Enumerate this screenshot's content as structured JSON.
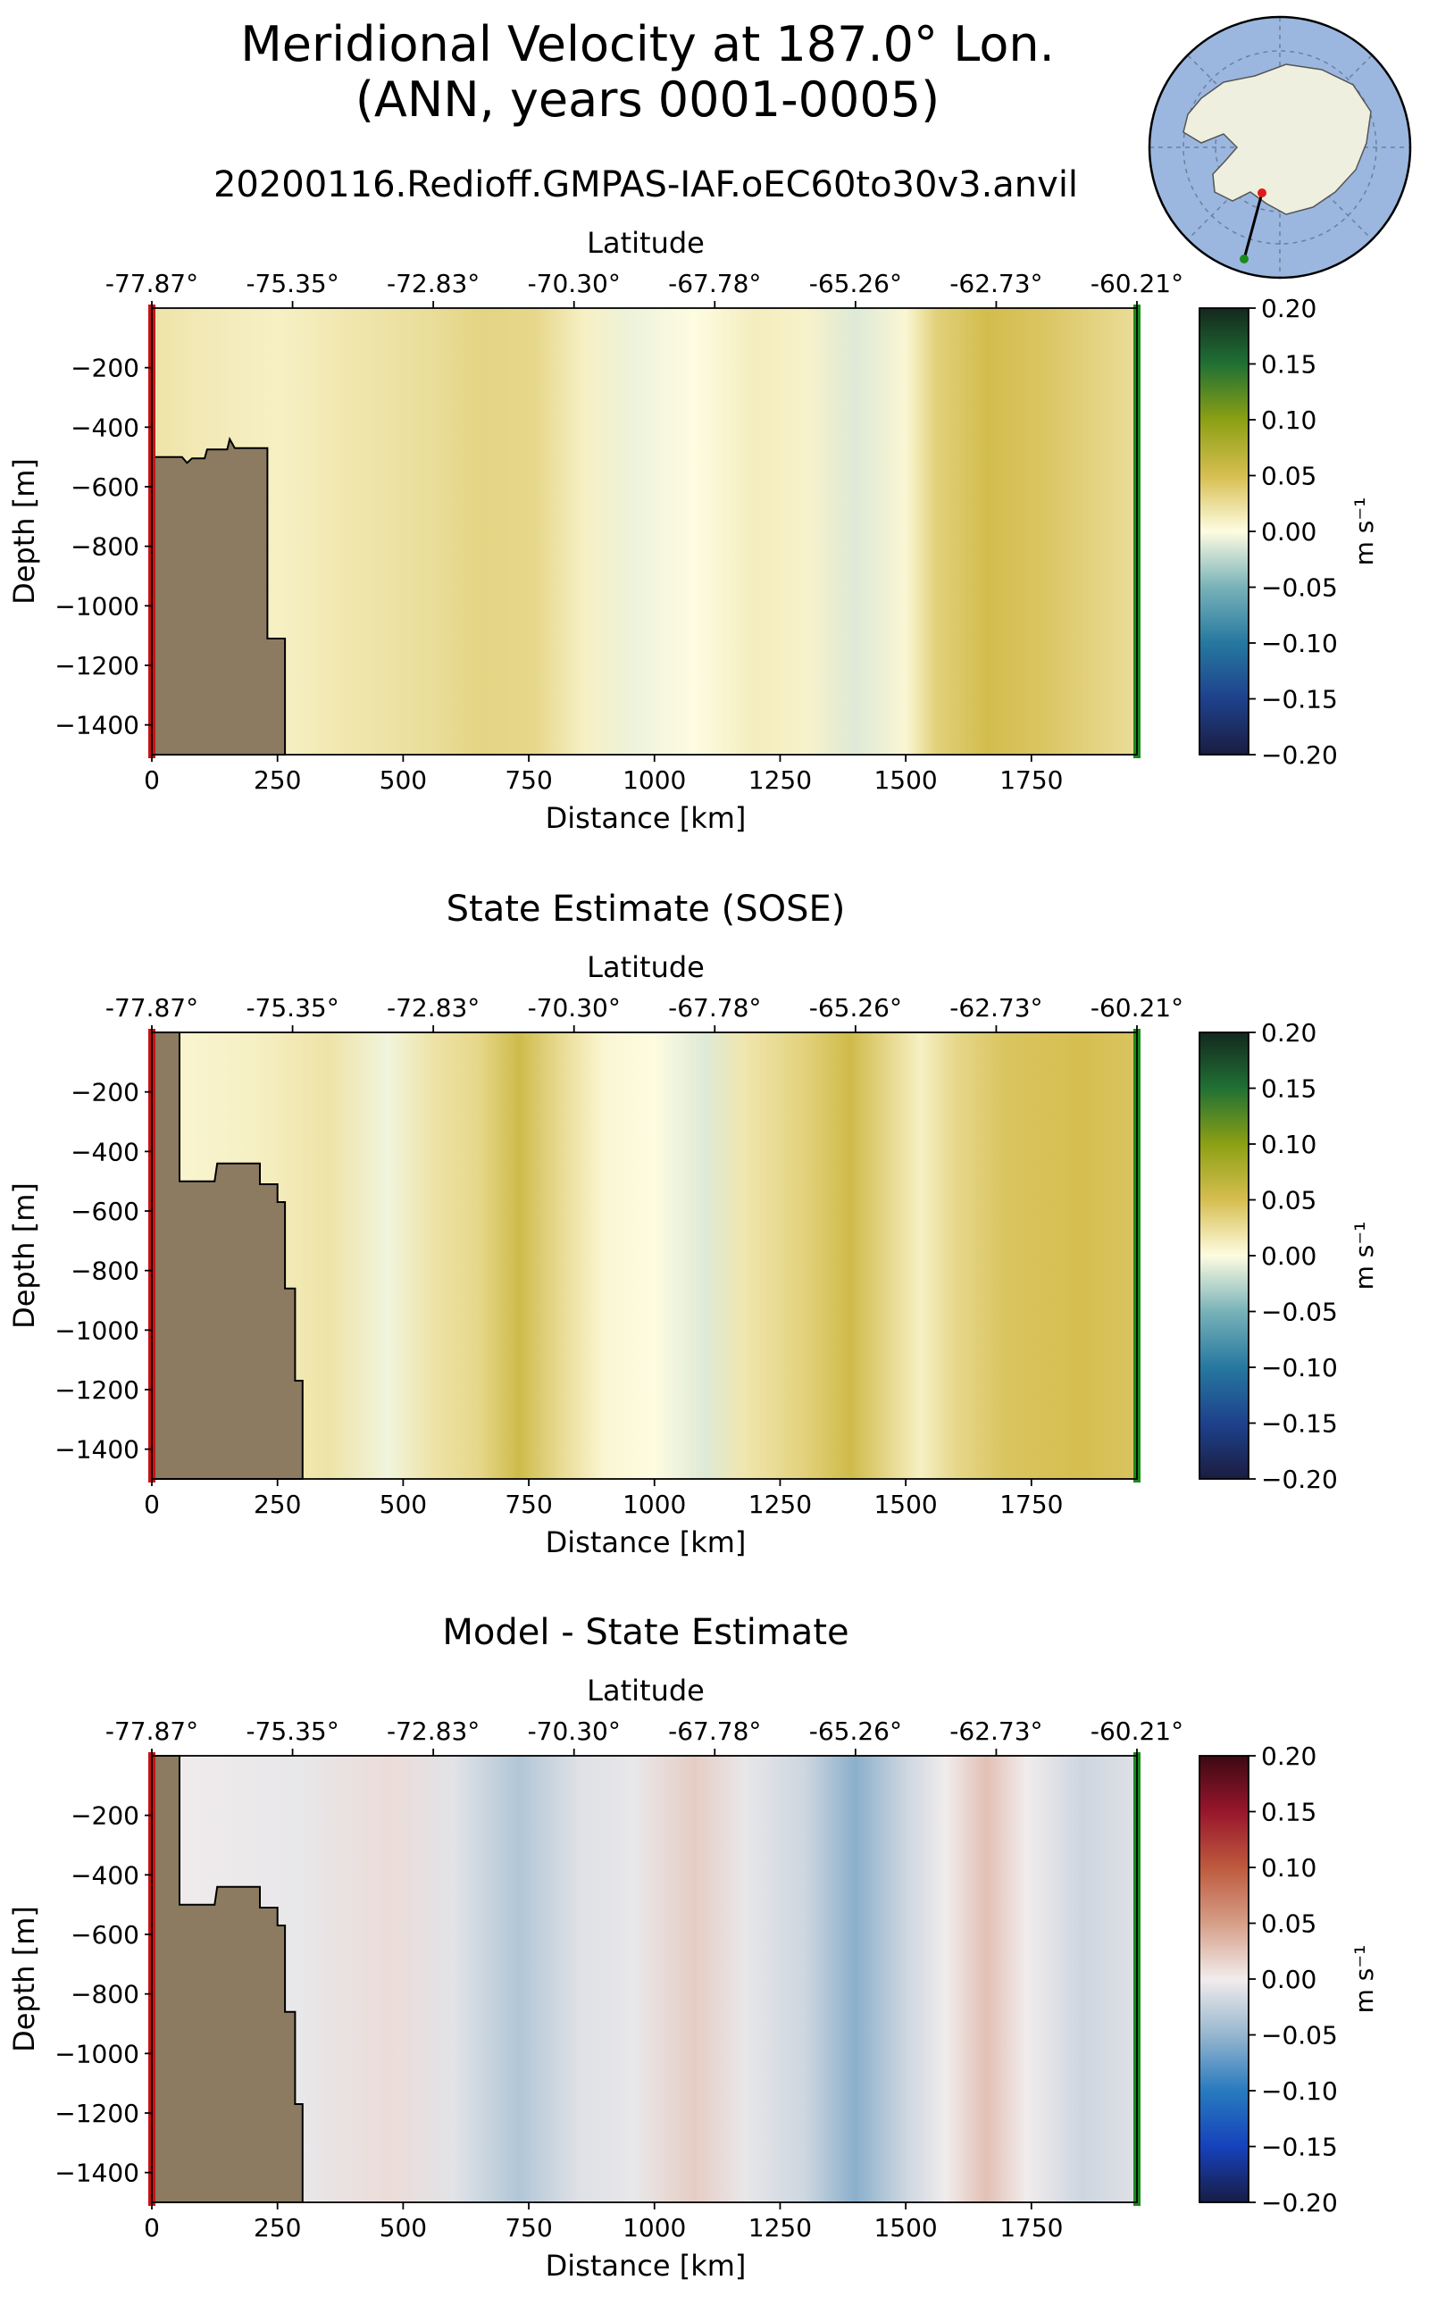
{
  "figure": {
    "title_line1": "Meridional Velocity at 187.0° Lon.",
    "title_line2": "(ANN, years 0001-0005)"
  },
  "map_inset": {
    "description_icon": "antarctic-polar-map",
    "colors": {
      "ocean": "#9bb7e0",
      "land": "#efefdf",
      "section": "#000000",
      "start_marker": "#e11b1b",
      "end_marker": "#1a8a1a"
    }
  },
  "chart_data": [
    {
      "type": "heatmap",
      "title": "20200116.Redioff.GMPAS-IAF.oEC60to30v3.anvil",
      "xlabel": "Distance [km]",
      "ylabel": "Depth [m]",
      "top_axis_label": "Latitude",
      "xlim": [
        0,
        1960
      ],
      "ylim": [
        -1500,
        0
      ],
      "x_ticks": [
        0,
        250,
        500,
        750,
        1000,
        1250,
        1500,
        1750
      ],
      "x_tick_labels": [
        "0",
        "250",
        "500",
        "750",
        "1000",
        "1250",
        "1500",
        "1750"
      ],
      "y_ticks": [
        -200,
        -400,
        -600,
        -800,
        -1000,
        -1200,
        -1400
      ],
      "y_tick_labels": [
        "−200",
        "−400",
        "−600",
        "−800",
        "−1000",
        "−1200",
        "−1400"
      ],
      "lat_ticks": [
        0,
        280,
        560,
        840,
        1120,
        1400,
        1680,
        1960
      ],
      "lat_tick_labels": [
        "-77.87°",
        "-75.35°",
        "-72.83°",
        "-70.30°",
        "-67.78°",
        "-65.26°",
        "-62.73°",
        "-60.21°"
      ],
      "colormap": "delta-positive-green",
      "clim": [
        -0.2,
        0.2
      ],
      "colorbar_label": "m s⁻¹",
      "colorbar_ticks": [
        "0.20",
        "0.15",
        "0.10",
        "0.05",
        "0.00",
        "−0.05",
        "−0.10",
        "−0.15",
        "−0.20"
      ],
      "velocity_profile": [
        {
          "x": 0,
          "v": 0.02
        },
        {
          "x": 100,
          "v": 0.015
        },
        {
          "x": 250,
          "v": 0.01
        },
        {
          "x": 400,
          "v": 0.018
        },
        {
          "x": 560,
          "v": 0.025
        },
        {
          "x": 650,
          "v": 0.032
        },
        {
          "x": 760,
          "v": 0.03
        },
        {
          "x": 860,
          "v": 0.01
        },
        {
          "x": 960,
          "v": -0.006
        },
        {
          "x": 1080,
          "v": 0.0
        },
        {
          "x": 1200,
          "v": 0.012
        },
        {
          "x": 1300,
          "v": 0.008
        },
        {
          "x": 1400,
          "v": -0.012
        },
        {
          "x": 1500,
          "v": 0.005
        },
        {
          "x": 1560,
          "v": 0.035
        },
        {
          "x": 1660,
          "v": 0.052
        },
        {
          "x": 1760,
          "v": 0.045
        },
        {
          "x": 1960,
          "v": 0.025
        }
      ],
      "bathymetry": [
        [
          0,
          -500
        ],
        [
          60,
          -500
        ],
        [
          70,
          -520
        ],
        [
          80,
          -505
        ],
        [
          105,
          -505
        ],
        [
          110,
          -475
        ],
        [
          150,
          -475
        ],
        [
          155,
          -440
        ],
        [
          165,
          -470
        ],
        [
          230,
          -470
        ],
        [
          230,
          -1110
        ],
        [
          265,
          -1110
        ],
        [
          265,
          -1500
        ]
      ]
    },
    {
      "type": "heatmap",
      "title": "State Estimate (SOSE)",
      "xlabel": "Distance [km]",
      "ylabel": "Depth [m]",
      "top_axis_label": "Latitude",
      "xlim": [
        0,
        1960
      ],
      "ylim": [
        -1500,
        0
      ],
      "x_ticks": [
        0,
        250,
        500,
        750,
        1000,
        1250,
        1500,
        1750
      ],
      "x_tick_labels": [
        "0",
        "250",
        "500",
        "750",
        "1000",
        "1250",
        "1500",
        "1750"
      ],
      "y_ticks": [
        -200,
        -400,
        -600,
        -800,
        -1000,
        -1200,
        -1400
      ],
      "y_tick_labels": [
        "−200",
        "−400",
        "−600",
        "−800",
        "−1000",
        "−1200",
        "−1400"
      ],
      "lat_ticks": [
        0,
        280,
        560,
        840,
        1120,
        1400,
        1680,
        1960
      ],
      "lat_tick_labels": [
        "-77.87°",
        "-75.35°",
        "-72.83°",
        "-70.30°",
        "-67.78°",
        "-65.26°",
        "-62.73°",
        "-60.21°"
      ],
      "colormap": "delta-positive-green",
      "clim": [
        -0.2,
        0.2
      ],
      "colorbar_label": "m s⁻¹",
      "colorbar_ticks": [
        "0.20",
        "0.15",
        "0.10",
        "0.05",
        "0.00",
        "−0.05",
        "−0.10",
        "−0.15",
        "−0.20"
      ],
      "velocity_profile": [
        {
          "x": 0,
          "v": 0.005
        },
        {
          "x": 200,
          "v": 0.01
        },
        {
          "x": 350,
          "v": 0.02
        },
        {
          "x": 470,
          "v": -0.005
        },
        {
          "x": 560,
          "v": 0.02
        },
        {
          "x": 650,
          "v": 0.03
        },
        {
          "x": 730,
          "v": 0.055
        },
        {
          "x": 820,
          "v": 0.025
        },
        {
          "x": 900,
          "v": 0.005
        },
        {
          "x": 1000,
          "v": 0.0
        },
        {
          "x": 1100,
          "v": -0.012
        },
        {
          "x": 1180,
          "v": 0.018
        },
        {
          "x": 1300,
          "v": 0.035
        },
        {
          "x": 1390,
          "v": 0.055
        },
        {
          "x": 1480,
          "v": 0.025
        },
        {
          "x": 1530,
          "v": 0.01
        },
        {
          "x": 1600,
          "v": 0.03
        },
        {
          "x": 1700,
          "v": 0.045
        },
        {
          "x": 1850,
          "v": 0.05
        },
        {
          "x": 1960,
          "v": 0.045
        }
      ],
      "bathymetry": [
        [
          0,
          0
        ],
        [
          55,
          0
        ],
        [
          55,
          -500
        ],
        [
          125,
          -500
        ],
        [
          130,
          -440
        ],
        [
          215,
          -440
        ],
        [
          215,
          -510
        ],
        [
          250,
          -510
        ],
        [
          250,
          -570
        ],
        [
          265,
          -570
        ],
        [
          265,
          -860
        ],
        [
          285,
          -860
        ],
        [
          285,
          -1170
        ],
        [
          300,
          -1170
        ],
        [
          300,
          -1500
        ]
      ]
    },
    {
      "type": "heatmap",
      "title": "Model - State Estimate",
      "xlabel": "Distance [km]",
      "ylabel": "Depth [m]",
      "top_axis_label": "Latitude",
      "xlim": [
        0,
        1960
      ],
      "ylim": [
        -1500,
        0
      ],
      "x_ticks": [
        0,
        250,
        500,
        750,
        1000,
        1250,
        1500,
        1750
      ],
      "x_tick_labels": [
        "0",
        "250",
        "500",
        "750",
        "1000",
        "1250",
        "1500",
        "1750"
      ],
      "y_ticks": [
        -200,
        -400,
        -600,
        -800,
        -1000,
        -1200,
        -1400
      ],
      "y_tick_labels": [
        "−200",
        "−400",
        "−600",
        "−800",
        "−1000",
        "−1200",
        "−1400"
      ],
      "lat_ticks": [
        0,
        280,
        560,
        840,
        1120,
        1400,
        1680,
        1960
      ],
      "lat_tick_labels": [
        "-77.87°",
        "-75.35°",
        "-72.83°",
        "-70.30°",
        "-67.78°",
        "-65.26°",
        "-62.73°",
        "-60.21°"
      ],
      "colormap": "balance",
      "clim": [
        -0.2,
        0.2
      ],
      "colorbar_label": "m s⁻¹",
      "colorbar_ticks": [
        "0.20",
        "0.15",
        "0.10",
        "0.05",
        "0.00",
        "−0.05",
        "−0.10",
        "−0.15",
        "−0.20"
      ],
      "velocity_profile": [
        {
          "x": 0,
          "v": 0.0
        },
        {
          "x": 300,
          "v": -0.005
        },
        {
          "x": 470,
          "v": 0.01
        },
        {
          "x": 600,
          "v": -0.008
        },
        {
          "x": 730,
          "v": -0.035
        },
        {
          "x": 850,
          "v": -0.01
        },
        {
          "x": 960,
          "v": -0.005
        },
        {
          "x": 1080,
          "v": 0.02
        },
        {
          "x": 1180,
          "v": -0.005
        },
        {
          "x": 1300,
          "v": -0.02
        },
        {
          "x": 1400,
          "v": -0.055
        },
        {
          "x": 1500,
          "v": -0.02
        },
        {
          "x": 1580,
          "v": 0.0
        },
        {
          "x": 1660,
          "v": 0.028
        },
        {
          "x": 1740,
          "v": 0.0
        },
        {
          "x": 1850,
          "v": -0.02
        },
        {
          "x": 1960,
          "v": -0.01
        }
      ],
      "bathymetry": [
        [
          0,
          0
        ],
        [
          55,
          0
        ],
        [
          55,
          -500
        ],
        [
          125,
          -500
        ],
        [
          130,
          -440
        ],
        [
          215,
          -440
        ],
        [
          215,
          -510
        ],
        [
          250,
          -510
        ],
        [
          250,
          -570
        ],
        [
          265,
          -570
        ],
        [
          265,
          -860
        ],
        [
          285,
          -860
        ],
        [
          285,
          -1170
        ],
        [
          300,
          -1170
        ],
        [
          300,
          -1500
        ]
      ]
    }
  ]
}
